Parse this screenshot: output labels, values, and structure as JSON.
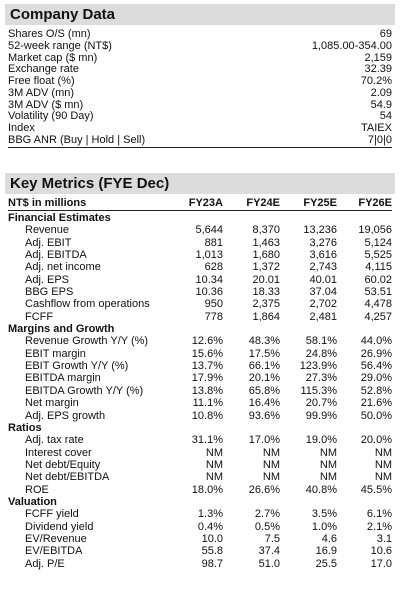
{
  "company_data": {
    "title": "Company Data",
    "rows": [
      {
        "label": "Shares O/S (mn)",
        "value": "69"
      },
      {
        "label": "52-week range (NT$)",
        "value": "1,085.00-354.00"
      },
      {
        "label": "Market cap ($ mn)",
        "value": "2,159"
      },
      {
        "label": "Exchange rate",
        "value": "32.39"
      },
      {
        "label": "Free float (%)",
        "value": "70.2%"
      },
      {
        "label": "3M ADV (mn)",
        "value": "2.09"
      },
      {
        "label": "3M ADV ($ mn)",
        "value": "54.9"
      },
      {
        "label": "Volatility (90 Day)",
        "value": "54"
      },
      {
        "label": "Index",
        "value": "TAIEX"
      },
      {
        "label": "BBG ANR (Buy | Hold | Sell)",
        "value": "7|0|0"
      }
    ]
  },
  "key_metrics": {
    "title": "Key Metrics (FYE Dec)",
    "header": {
      "label": "NT$ in millions",
      "cols": [
        "FY23A",
        "FY24E",
        "FY25E",
        "FY26E"
      ]
    },
    "sections": [
      {
        "name": "Financial Estimates",
        "rows": [
          {
            "label": "Revenue",
            "values": [
              "5,644",
              "8,370",
              "13,236",
              "19,056"
            ]
          },
          {
            "label": "Adj. EBIT",
            "values": [
              "881",
              "1,463",
              "3,276",
              "5,124"
            ]
          },
          {
            "label": "Adj. EBITDA",
            "values": [
              "1,013",
              "1,680",
              "3,616",
              "5,525"
            ]
          },
          {
            "label": "Adj. net income",
            "values": [
              "628",
              "1,372",
              "2,743",
              "4,115"
            ]
          },
          {
            "label": "Adj. EPS",
            "values": [
              "10.34",
              "20.01",
              "40.01",
              "60.02"
            ]
          },
          {
            "label": "BBG EPS",
            "values": [
              "10.36",
              "18.33",
              "37.04",
              "53.51"
            ]
          },
          {
            "label": "Cashflow from operations",
            "values": [
              "950",
              "2,375",
              "2,702",
              "4,478"
            ]
          },
          {
            "label": "FCFF",
            "values": [
              "778",
              "1,864",
              "2,481",
              "4,257"
            ]
          }
        ]
      },
      {
        "name": "Margins and Growth",
        "rows": [
          {
            "label": "Revenue Growth Y/Y (%)",
            "values": [
              "12.6%",
              "48.3%",
              "58.1%",
              "44.0%"
            ]
          },
          {
            "label": "EBIT margin",
            "values": [
              "15.6%",
              "17.5%",
              "24.8%",
              "26.9%"
            ]
          },
          {
            "label": "EBIT Growth Y/Y (%)",
            "values": [
              "13.7%",
              "66.1%",
              "123.9%",
              "56.4%"
            ]
          },
          {
            "label": "EBITDA margin",
            "values": [
              "17.9%",
              "20.1%",
              "27.3%",
              "29.0%"
            ]
          },
          {
            "label": "EBITDA Growth Y/Y (%)",
            "values": [
              "13.8%",
              "65.8%",
              "115.3%",
              "52.8%"
            ]
          },
          {
            "label": "Net margin",
            "values": [
              "11.1%",
              "16.4%",
              "20.7%",
              "21.6%"
            ]
          },
          {
            "label": "Adj. EPS growth",
            "values": [
              "10.8%",
              "93.6%",
              "99.9%",
              "50.0%"
            ]
          }
        ]
      },
      {
        "name": "Ratios",
        "rows": [
          {
            "label": "Adj. tax rate",
            "values": [
              "31.1%",
              "17.0%",
              "19.0%",
              "20.0%"
            ]
          },
          {
            "label": "Interest cover",
            "values": [
              "NM",
              "NM",
              "NM",
              "NM"
            ]
          },
          {
            "label": "Net debt/Equity",
            "values": [
              "NM",
              "NM",
              "NM",
              "NM"
            ]
          },
          {
            "label": "Net debt/EBITDA",
            "values": [
              "NM",
              "NM",
              "NM",
              "NM"
            ]
          },
          {
            "label": "ROE",
            "values": [
              "18.0%",
              "26.6%",
              "40.8%",
              "45.5%"
            ]
          }
        ]
      },
      {
        "name": "Valuation",
        "rows": [
          {
            "label": "FCFF yield",
            "values": [
              "1.3%",
              "2.7%",
              "3.5%",
              "6.1%"
            ]
          },
          {
            "label": "Dividend yield",
            "values": [
              "0.4%",
              "0.5%",
              "1.0%",
              "2.1%"
            ]
          },
          {
            "label": "EV/Revenue",
            "values": [
              "10.0",
              "7.5",
              "4.6",
              "3.1"
            ]
          },
          {
            "label": "EV/EBITDA",
            "values": [
              "55.8",
              "37.4",
              "16.9",
              "10.6"
            ]
          },
          {
            "label": "Adj. P/E",
            "values": [
              "98.7",
              "51.0",
              "25.5",
              "17.0"
            ]
          }
        ]
      }
    ]
  }
}
